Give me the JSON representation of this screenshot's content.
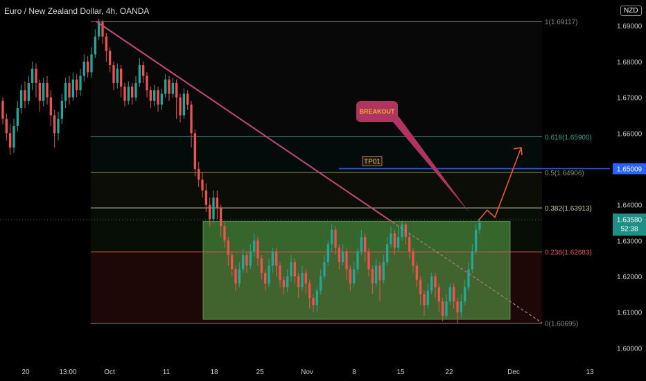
{
  "header": {
    "title": "Euro / New Zealand Dollar, 4h, OANDA",
    "currency_badge": "NZD"
  },
  "colors": {
    "up": "#26a69a",
    "down": "#ef5350",
    "trendline": "#c2497a",
    "projection": "#f0553f",
    "tp_line": "#2962ff",
    "fib_1": "#8a8a8a",
    "fib_618": "#3d9b8a",
    "fib_5": "#8f9b4a",
    "fib_382": "#c9c9a0",
    "fib_236": "#e0574d",
    "fib_0": "#8a8a8a",
    "box": "#5fae4c",
    "callout": "#b0345f"
  },
  "chart_data": {
    "type": "candlestick",
    "symbol": "Euro / New Zealand Dollar",
    "interval": "4h",
    "source": "OANDA",
    "price_axis": {
      "ticks": [
        1.69,
        1.68,
        1.67,
        1.66,
        1.65,
        1.64,
        1.63,
        1.62,
        1.61,
        1.6
      ],
      "tick_labels": [
        "1.69000",
        "1.68000",
        "1.67000",
        "1.66000",
        "1.65000",
        "1.64000",
        "1.63000",
        "1.62000",
        "1.61000",
        "1.60000"
      ],
      "range": [
        1.5962,
        1.6972
      ]
    },
    "time_axis": {
      "labels": [
        "20",
        "13:00",
        "Oct",
        "11",
        "18",
        "25",
        "Nov",
        "8",
        "15",
        "22",
        "Dec",
        "13"
      ]
    },
    "current_price": {
      "value": 1.6358,
      "label": "1.63580",
      "countdown": "52:38"
    },
    "tp_marker": {
      "value": 1.65009,
      "label": "1.65009",
      "text": "TP01"
    },
    "fibonacci": [
      {
        "level": "1",
        "price": 1.69117,
        "label": "1(1.69117)"
      },
      {
        "level": "0.618",
        "price": 1.659,
        "label": "0.618(1.65900)"
      },
      {
        "level": "0.5",
        "price": 1.64906,
        "label": "0.5(1.64906)"
      },
      {
        "level": "0.382",
        "price": 1.63913,
        "label": "0.382(1.63913)"
      },
      {
        "level": "0.236",
        "price": 1.62683,
        "label": "0.236(1.62683)"
      },
      {
        "level": "0",
        "price": 1.60695,
        "label": "0(1.60695)"
      }
    ],
    "range_box": {
      "price_top": 1.6354,
      "price_bottom": 1.608
    },
    "annotation": {
      "text": "BREAKOUT"
    },
    "candles": [
      [
        1.669,
        1.664,
        1.67,
        1.6625
      ],
      [
        1.664,
        1.66,
        1.6655,
        1.658
      ],
      [
        1.66,
        1.656,
        1.6625,
        1.654
      ],
      [
        1.656,
        1.662,
        1.664,
        1.6545
      ],
      [
        1.662,
        1.667,
        1.669,
        1.6605
      ],
      [
        1.667,
        1.672,
        1.6735,
        1.6655
      ],
      [
        1.672,
        1.669,
        1.6745,
        1.667
      ],
      [
        1.669,
        1.674,
        1.676,
        1.668
      ],
      [
        1.674,
        1.678,
        1.68,
        1.672
      ],
      [
        1.678,
        1.674,
        1.6795,
        1.67
      ],
      [
        1.674,
        1.669,
        1.675,
        1.666
      ],
      [
        1.669,
        1.674,
        1.6755,
        1.6675
      ],
      [
        1.674,
        1.67,
        1.676,
        1.668
      ],
      [
        1.67,
        1.665,
        1.672,
        1.662
      ],
      [
        1.665,
        1.66,
        1.6665,
        1.656
      ],
      [
        1.66,
        1.664,
        1.666,
        1.658
      ],
      [
        1.664,
        1.669,
        1.671,
        1.6625
      ],
      [
        1.669,
        1.674,
        1.6755,
        1.667
      ],
      [
        1.674,
        1.67,
        1.676,
        1.668
      ],
      [
        1.67,
        1.675,
        1.677,
        1.669
      ],
      [
        1.675,
        1.672,
        1.6765,
        1.67
      ],
      [
        1.672,
        1.676,
        1.678,
        1.6705
      ],
      [
        1.676,
        1.68,
        1.682,
        1.6745
      ],
      [
        1.68,
        1.677,
        1.6815,
        1.6755
      ],
      [
        1.677,
        1.682,
        1.684,
        1.6755
      ],
      [
        1.682,
        1.687,
        1.689,
        1.681
      ],
      [
        1.687,
        1.691,
        1.692,
        1.686
      ],
      [
        1.691,
        1.687,
        1.6917,
        1.685
      ],
      [
        1.687,
        1.683,
        1.688,
        1.68
      ],
      [
        1.683,
        1.679,
        1.684,
        1.677
      ],
      [
        1.679,
        1.674,
        1.68,
        1.672
      ],
      [
        1.674,
        1.678,
        1.6795,
        1.6725
      ],
      [
        1.678,
        1.673,
        1.679,
        1.67
      ],
      [
        1.673,
        1.669,
        1.674,
        1.6675
      ],
      [
        1.669,
        1.673,
        1.6745,
        1.668
      ],
      [
        1.673,
        1.67,
        1.674,
        1.668
      ],
      [
        1.67,
        1.674,
        1.676,
        1.669
      ],
      [
        1.674,
        1.679,
        1.681,
        1.673
      ],
      [
        1.679,
        1.676,
        1.68,
        1.674
      ],
      [
        1.676,
        1.672,
        1.677,
        1.67
      ],
      [
        1.672,
        1.669,
        1.673,
        1.667
      ],
      [
        1.669,
        1.672,
        1.6735,
        1.6675
      ],
      [
        1.672,
        1.668,
        1.673,
        1.666
      ],
      [
        1.668,
        1.671,
        1.6725,
        1.6665
      ],
      [
        1.671,
        1.675,
        1.6765,
        1.67
      ],
      [
        1.675,
        1.671,
        1.676,
        1.669
      ],
      [
        1.671,
        1.674,
        1.6755,
        1.67
      ],
      [
        1.674,
        1.67,
        1.675,
        1.664
      ],
      [
        1.67,
        1.665,
        1.671,
        1.663
      ],
      [
        1.665,
        1.671,
        1.6725,
        1.664
      ],
      [
        1.671,
        1.668,
        1.672,
        1.6665
      ],
      [
        1.668,
        1.66,
        1.669,
        1.656
      ],
      [
        1.66,
        1.65,
        1.661,
        1.648
      ],
      [
        1.65,
        1.647,
        1.652,
        1.645
      ],
      [
        1.647,
        1.644,
        1.649,
        1.642
      ],
      [
        1.644,
        1.64,
        1.646,
        1.638
      ],
      [
        1.64,
        1.636,
        1.642,
        1.634
      ],
      [
        1.636,
        1.642,
        1.644,
        1.635
      ],
      [
        1.642,
        1.639,
        1.644,
        1.636
      ],
      [
        1.639,
        1.634,
        1.64,
        1.631
      ],
      [
        1.634,
        1.63,
        1.635,
        1.628
      ],
      [
        1.63,
        1.626,
        1.631,
        1.623
      ],
      [
        1.626,
        1.622,
        1.627,
        1.62
      ],
      [
        1.622,
        1.618,
        1.623,
        1.616
      ],
      [
        1.618,
        1.622,
        1.624,
        1.617
      ],
      [
        1.622,
        1.626,
        1.628,
        1.621
      ],
      [
        1.626,
        1.623,
        1.627,
        1.621
      ],
      [
        1.623,
        1.627,
        1.629,
        1.622
      ],
      [
        1.627,
        1.63,
        1.632,
        1.6255
      ],
      [
        1.63,
        1.625,
        1.631,
        1.623
      ],
      [
        1.625,
        1.621,
        1.626,
        1.619
      ],
      [
        1.621,
        1.618,
        1.622,
        1.616
      ],
      [
        1.618,
        1.623,
        1.625,
        1.617
      ],
      [
        1.623,
        1.627,
        1.628,
        1.621
      ],
      [
        1.627,
        1.623,
        1.628,
        1.62
      ],
      [
        1.623,
        1.619,
        1.624,
        1.617
      ],
      [
        1.619,
        1.617,
        1.62,
        1.615
      ],
      [
        1.617,
        1.62,
        1.622,
        1.6155
      ],
      [
        1.62,
        1.624,
        1.626,
        1.6185
      ],
      [
        1.624,
        1.62,
        1.625,
        1.618
      ],
      [
        1.62,
        1.617,
        1.621,
        1.614
      ],
      [
        1.617,
        1.621,
        1.623,
        1.616
      ],
      [
        1.621,
        1.618,
        1.622,
        1.615
      ],
      [
        1.618,
        1.614,
        1.619,
        1.611
      ],
      [
        1.614,
        1.612,
        1.615,
        1.61
      ],
      [
        1.612,
        1.616,
        1.617,
        1.61
      ],
      [
        1.616,
        1.62,
        1.622,
        1.615
      ],
      [
        1.62,
        1.624,
        1.626,
        1.619
      ],
      [
        1.624,
        1.629,
        1.63,
        1.623
      ],
      [
        1.629,
        1.633,
        1.6345,
        1.627
      ],
      [
        1.633,
        1.628,
        1.634,
        1.626
      ],
      [
        1.628,
        1.624,
        1.629,
        1.622
      ],
      [
        1.624,
        1.627,
        1.629,
        1.623
      ],
      [
        1.627,
        1.622,
        1.628,
        1.619
      ],
      [
        1.622,
        1.618,
        1.623,
        1.616
      ],
      [
        1.618,
        1.622,
        1.624,
        1.617
      ],
      [
        1.622,
        1.627,
        1.628,
        1.621
      ],
      [
        1.627,
        1.631,
        1.633,
        1.626
      ],
      [
        1.631,
        1.627,
        1.632,
        1.624
      ],
      [
        1.627,
        1.622,
        1.628,
        1.62
      ],
      [
        1.622,
        1.618,
        1.623,
        1.615
      ],
      [
        1.618,
        1.623,
        1.625,
        1.617
      ],
      [
        1.623,
        1.619,
        1.624,
        1.613
      ],
      [
        1.619,
        1.624,
        1.626,
        1.618
      ],
      [
        1.624,
        1.629,
        1.631,
        1.623
      ],
      [
        1.629,
        1.632,
        1.634,
        1.628
      ],
      [
        1.632,
        1.628,
        1.633,
        1.626
      ],
      [
        1.628,
        1.631,
        1.634,
        1.627
      ],
      [
        1.631,
        1.6345,
        1.6355,
        1.63
      ],
      [
        1.6345,
        1.631,
        1.635,
        1.629
      ],
      [
        1.631,
        1.627,
        1.632,
        1.625
      ],
      [
        1.627,
        1.623,
        1.628,
        1.621
      ],
      [
        1.623,
        1.619,
        1.624,
        1.617
      ],
      [
        1.619,
        1.615,
        1.62,
        1.612
      ],
      [
        1.615,
        1.612,
        1.616,
        1.609
      ],
      [
        1.612,
        1.616,
        1.618,
        1.611
      ],
      [
        1.616,
        1.62,
        1.621,
        1.615
      ],
      [
        1.62,
        1.617,
        1.621,
        1.614
      ],
      [
        1.617,
        1.613,
        1.618,
        1.61
      ],
      [
        1.613,
        1.609,
        1.614,
        1.6075
      ],
      [
        1.609,
        1.613,
        1.615,
        1.608
      ],
      [
        1.613,
        1.617,
        1.618,
        1.612
      ],
      [
        1.617,
        1.613,
        1.618,
        1.611
      ],
      [
        1.613,
        1.61,
        1.614,
        1.607
      ],
      [
        1.61,
        1.613,
        1.615,
        1.6085
      ],
      [
        1.613,
        1.617,
        1.619,
        1.612
      ],
      [
        1.617,
        1.622,
        1.624,
        1.616
      ],
      [
        1.622,
        1.627,
        1.629,
        1.621
      ],
      [
        1.627,
        1.633,
        1.6345,
        1.626
      ],
      [
        1.633,
        1.635,
        1.636,
        1.632
      ]
    ]
  }
}
